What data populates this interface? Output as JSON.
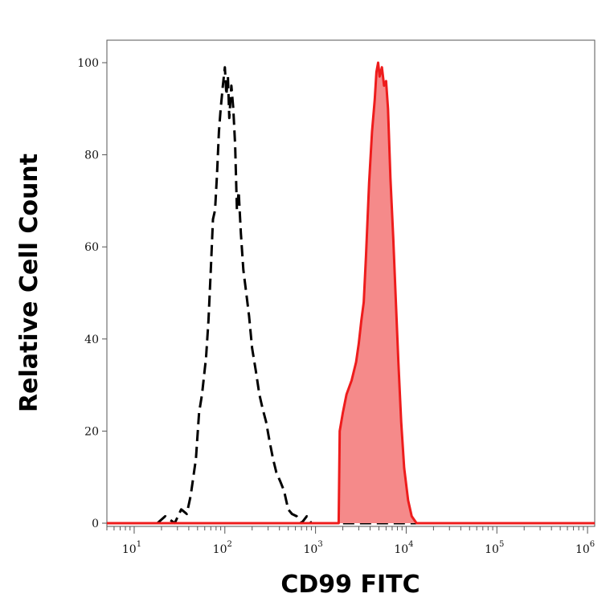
{
  "chart_data": {
    "type": "area",
    "xlabel": "CD99 FITC",
    "ylabel": "Relative Cell Count",
    "x_scale": "log",
    "xlim": [
      5,
      1200000
    ],
    "ylim": [
      0,
      102
    ],
    "x_ticks": [
      {
        "base": "10",
        "exp": "1",
        "value": 10
      },
      {
        "base": "10",
        "exp": "2",
        "value": 100
      },
      {
        "base": "10",
        "exp": "3",
        "value": 1000
      },
      {
        "base": "10",
        "exp": "4",
        "value": 10000
      },
      {
        "base": "10",
        "exp": "5",
        "value": 100000
      },
      {
        "base": "10",
        "exp": "6",
        "value": 1000000
      }
    ],
    "y_ticks": [
      "0",
      "20",
      "40",
      "60",
      "80",
      "100"
    ],
    "series": [
      {
        "style": "dashed",
        "color": "#000000",
        "fill": "none",
        "points": [
          [
            5,
            0
          ],
          [
            18,
            0
          ],
          [
            22,
            1.5
          ],
          [
            28,
            0
          ],
          [
            33,
            3
          ],
          [
            38,
            2
          ],
          [
            42,
            6
          ],
          [
            48,
            14
          ],
          [
            52,
            24
          ],
          [
            56,
            28
          ],
          [
            62,
            36
          ],
          [
            66,
            44
          ],
          [
            70,
            55
          ],
          [
            74,
            66
          ],
          [
            78,
            68
          ],
          [
            82,
            76
          ],
          [
            86,
            85
          ],
          [
            90,
            90
          ],
          [
            95,
            95
          ],
          [
            100,
            99
          ],
          [
            104,
            93
          ],
          [
            108,
            97
          ],
          [
            112,
            88
          ],
          [
            118,
            95
          ],
          [
            124,
            90
          ],
          [
            130,
            82
          ],
          [
            136,
            68
          ],
          [
            142,
            72
          ],
          [
            150,
            63
          ],
          [
            160,
            55
          ],
          [
            172,
            50
          ],
          [
            185,
            45
          ],
          [
            200,
            38
          ],
          [
            220,
            33
          ],
          [
            240,
            28
          ],
          [
            260,
            25
          ],
          [
            285,
            22
          ],
          [
            310,
            18
          ],
          [
            340,
            14
          ],
          [
            370,
            11
          ],
          [
            410,
            9
          ],
          [
            450,
            7
          ],
          [
            500,
            3
          ],
          [
            550,
            2
          ],
          [
            620,
            1.5
          ],
          [
            700,
            0
          ],
          [
            800,
            1.5
          ],
          [
            900,
            0
          ],
          [
            1100,
            0
          ],
          [
            1600,
            0
          ],
          [
            1200000,
            0
          ]
        ]
      },
      {
        "style": "solid",
        "color": "#ee1c1c",
        "fill": "#f58a8a",
        "points": [
          [
            5,
            0
          ],
          [
            1700,
            0
          ],
          [
            1800,
            0
          ],
          [
            1850,
            20
          ],
          [
            2000,
            24
          ],
          [
            2200,
            28
          ],
          [
            2500,
            31
          ],
          [
            2800,
            35
          ],
          [
            3000,
            39
          ],
          [
            3200,
            44
          ],
          [
            3400,
            48
          ],
          [
            3600,
            58
          ],
          [
            3900,
            74
          ],
          [
            4200,
            85
          ],
          [
            4500,
            92
          ],
          [
            4700,
            98
          ],
          [
            4900,
            100
          ],
          [
            5100,
            97
          ],
          [
            5400,
            99
          ],
          [
            5700,
            95
          ],
          [
            6000,
            96
          ],
          [
            6300,
            90
          ],
          [
            6700,
            75
          ],
          [
            7200,
            62
          ],
          [
            7700,
            48
          ],
          [
            8200,
            35
          ],
          [
            8800,
            22
          ],
          [
            9500,
            12
          ],
          [
            10500,
            5
          ],
          [
            11500,
            1.5
          ],
          [
            13000,
            0
          ],
          [
            1200000,
            0
          ]
        ]
      }
    ]
  }
}
